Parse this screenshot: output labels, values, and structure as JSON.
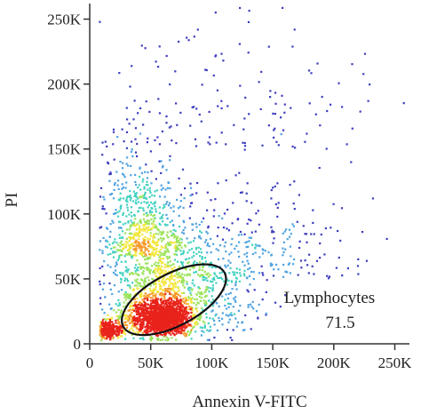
{
  "chart_data": {
    "type": "scatter",
    "subtype": "flow-cytometry-density-dot-plot",
    "title": "",
    "xlabel": "Annexin V-FITC",
    "ylabel": "PI",
    "xlim": [
      0,
      262000
    ],
    "ylim": [
      0,
      262000
    ],
    "x_ticks": [
      0,
      50000,
      100000,
      150000,
      200000,
      250000
    ],
    "x_tick_labels": [
      "0",
      "50K",
      "100K",
      "150K",
      "200K",
      "250K"
    ],
    "y_ticks": [
      0,
      50000,
      100000,
      150000,
      200000,
      250000
    ],
    "y_tick_labels": [
      "0",
      "50K",
      "100K",
      "150K",
      "200K",
      "250K"
    ],
    "grid": false,
    "legend": "none",
    "density_color_scale": [
      "#3d3dbf",
      "#4fa3e0",
      "#43d1c0",
      "#9be35a",
      "#f2e63a",
      "#f59a2b",
      "#e8231b"
    ],
    "clusters": [
      {
        "x": 57000,
        "y": 20000,
        "sx": 13000,
        "sy": 6500,
        "n": 1000
      },
      {
        "x": 65000,
        "y": 18000,
        "sx": 7000,
        "sy": 4000,
        "n": 420
      },
      {
        "x": 16000,
        "y": 11000,
        "sx": 5500,
        "sy": 3500,
        "n": 260
      },
      {
        "x": 55000,
        "y": 48000,
        "sx": 22000,
        "sy": 25000,
        "n": 800
      },
      {
        "x": 78000,
        "y": 32000,
        "sx": 30000,
        "sy": 16000,
        "n": 450
      },
      {
        "x": 40000,
        "y": 75000,
        "sx": 18000,
        "sy": 45000,
        "n": 500
      },
      {
        "x": 125000,
        "y": 55000,
        "sx": 45000,
        "sy": 40000,
        "n": 300
      },
      {
        "x": 120000,
        "y": 160000,
        "sx": 65000,
        "sy": 60000,
        "n": 140
      }
    ],
    "gate": {
      "name": "Lymphocytes",
      "value": "71.5",
      "shape": "ellipse",
      "center": [
        69000,
        34000
      ],
      "semi_axes": [
        47000,
        20000
      ],
      "rotation_deg": 28
    }
  }
}
